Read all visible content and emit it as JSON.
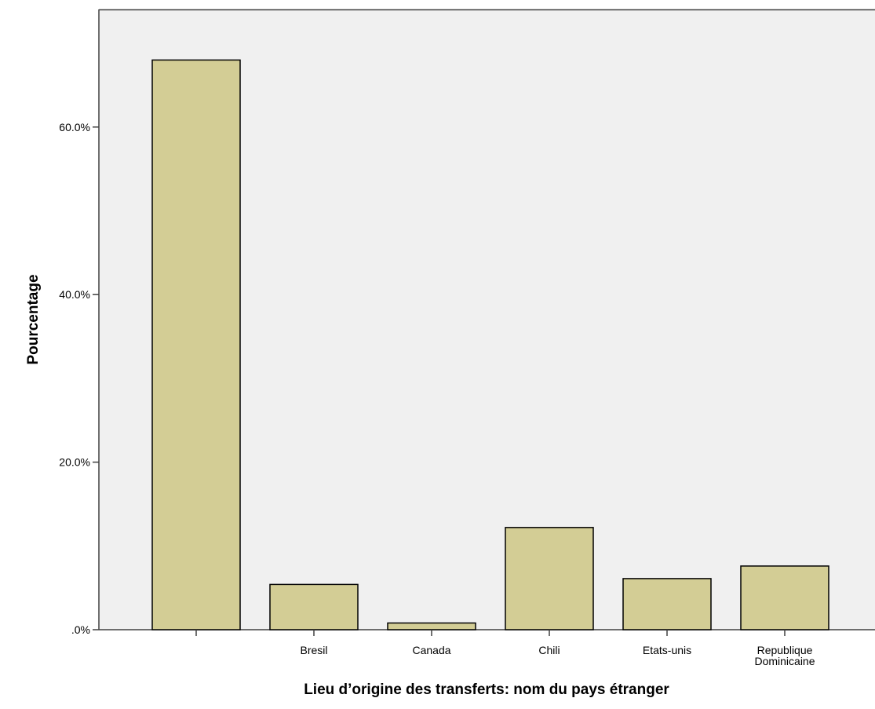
{
  "chart_data": {
    "type": "bar",
    "title": "",
    "xlabel": "Lieu d’origine des transferts: nom du pays étranger",
    "ylabel": "Pourcentage",
    "categories": [
      {
        "lines": [
          ""
        ]
      },
      {
        "lines": [
          "Bresil"
        ]
      },
      {
        "lines": [
          "Canada"
        ]
      },
      {
        "lines": [
          "Chili"
        ]
      },
      {
        "lines": [
          "Etats-unis"
        ]
      },
      {
        "lines": [
          "Republique",
          "Dominicaine"
        ]
      }
    ],
    "values": [
      68.0,
      5.4,
      0.8,
      12.2,
      6.1,
      7.6
    ],
    "ylim": [
      0,
      70
    ],
    "yticks": [
      {
        "value": 0,
        "label": ".0%"
      },
      {
        "value": 20,
        "label": "20.0%"
      },
      {
        "value": 40,
        "label": "40.0%"
      },
      {
        "value": 60,
        "label": "60.0%"
      }
    ],
    "grid": false,
    "legend": "none",
    "colors": {
      "bar_fill": "#D3CD95",
      "bar_stroke": "#000000",
      "plot_background": "#F0F0F0",
      "frame": "#404040"
    }
  }
}
